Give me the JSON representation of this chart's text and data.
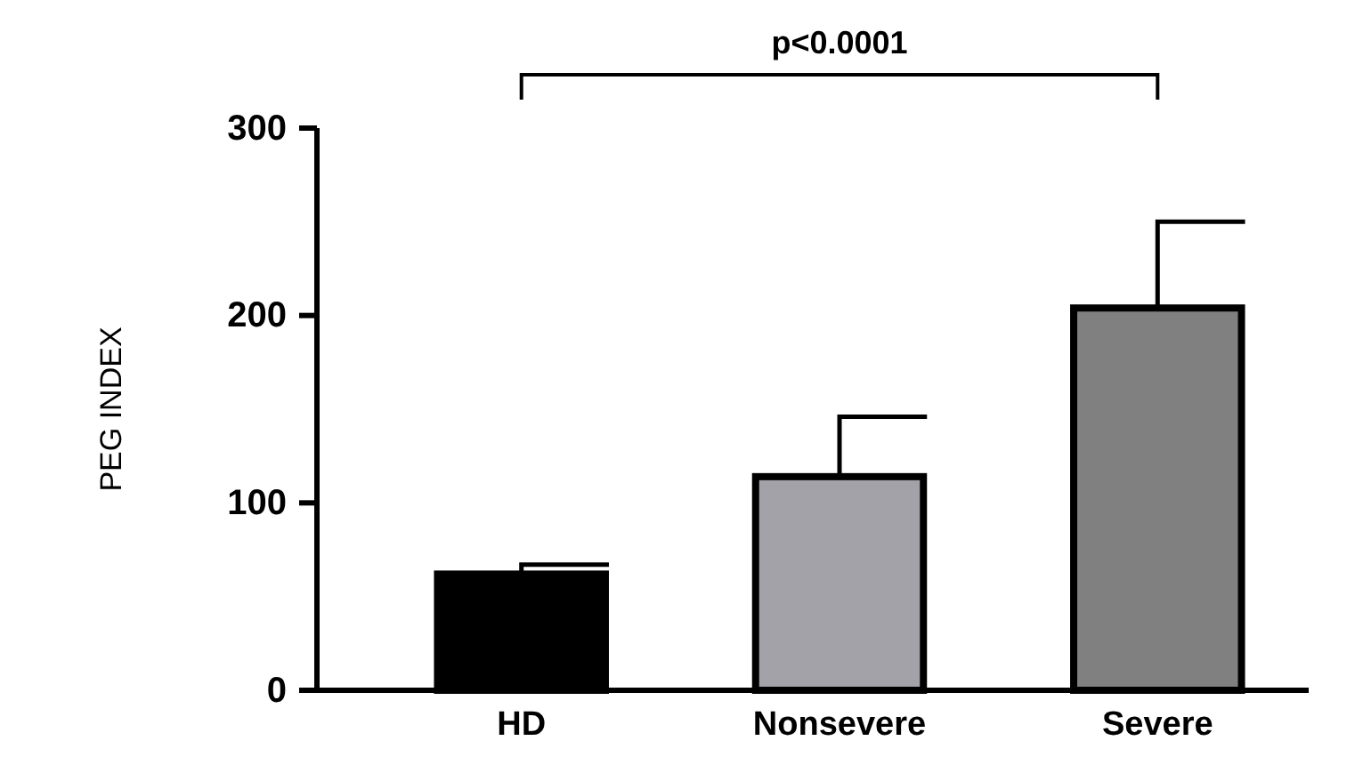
{
  "chart_data": {
    "type": "bar",
    "ylabel": "PEG INDEX",
    "categories": [
      "HD",
      "Nonsevere",
      "Severe"
    ],
    "values": [
      62,
      114,
      204
    ],
    "colors": [
      "#000000",
      "#a3a2a8",
      "#808080"
    ],
    "errors": [
      [
        62,
        67
      ],
      [
        114,
        146
      ],
      [
        204,
        250
      ]
    ],
    "ylim": [
      0,
      300
    ],
    "yticks": [
      0,
      100,
      200,
      300
    ],
    "grid": false,
    "annotations": [
      "p<0.0001"
    ]
  }
}
